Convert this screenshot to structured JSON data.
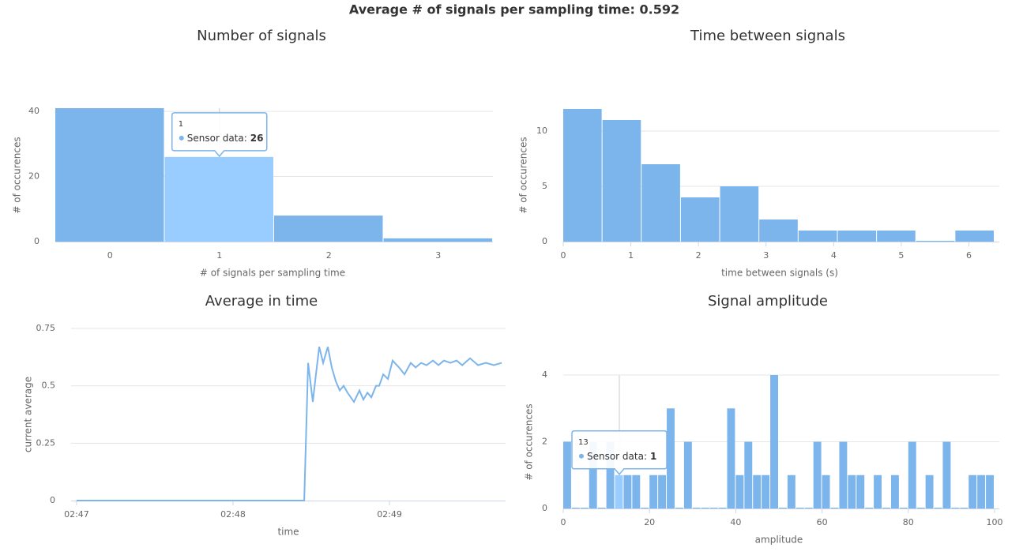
{
  "header": {
    "title": "Average # of signals per sampling time: 0.592"
  },
  "chart_data": [
    {
      "type": "bar",
      "title": "Number of signals",
      "x_label": "# of signals per sampling time",
      "y_label": "# of occurences",
      "categories": [
        "0",
        "1",
        "2",
        "3"
      ],
      "values": [
        41,
        26,
        8,
        1
      ],
      "color": "#7cb5ec",
      "highlight_color": "#99ccff",
      "ylim": [
        0,
        41
      ],
      "yticks": [
        0,
        20,
        40
      ],
      "grid": true,
      "tooltip": {
        "index": 1,
        "label": "Sensor data:"
      }
    },
    {
      "type": "histogram",
      "title": "Time between signals",
      "x_label": "time between signals (s)",
      "y_label": "# of occurences",
      "bins": [
        0,
        0.58,
        1.16,
        1.74,
        2.32,
        2.9,
        3.48,
        4.06,
        4.64,
        5.22,
        5.8,
        6.38
      ],
      "values": [
        12,
        11,
        7,
        4,
        5,
        2,
        1,
        1,
        1,
        0,
        1
      ],
      "color": "#7cb5ec",
      "xlim": [
        0,
        6.45
      ],
      "xticks": [
        0,
        1,
        2,
        3,
        4,
        5,
        6
      ],
      "ylim": [
        0,
        12
      ],
      "yticks": [
        0,
        5,
        10
      ],
      "grid": true
    },
    {
      "type": "line",
      "title": "Average in time",
      "x_label": "time",
      "y_label": "current average",
      "color": "#7cb5ec",
      "x": [
        167,
        168.455,
        168.48,
        168.51,
        168.53,
        168.551,
        168.576,
        168.606,
        168.631,
        168.657,
        168.682,
        168.707,
        168.732,
        168.773,
        168.808,
        168.833,
        168.859,
        168.884,
        168.914,
        168.934,
        168.96,
        168.99,
        169.02,
        169.061,
        169.096,
        169.136,
        169.167,
        169.202,
        169.237,
        169.278,
        169.313,
        169.348,
        169.389,
        169.429,
        169.465,
        169.515,
        169.566,
        169.616,
        169.667,
        169.717
      ],
      "values": [
        0,
        0,
        0.6,
        0.43,
        0.55,
        0.67,
        0.6,
        0.67,
        0.58,
        0.52,
        0.48,
        0.5,
        0.47,
        0.43,
        0.48,
        0.44,
        0.47,
        0.45,
        0.5,
        0.5,
        0.55,
        0.53,
        0.61,
        0.58,
        0.55,
        0.6,
        0.58,
        0.6,
        0.59,
        0.61,
        0.59,
        0.61,
        0.6,
        0.61,
        0.59,
        0.62,
        0.59,
        0.6,
        0.59,
        0.6
      ],
      "xlim": [
        166.965,
        169.742
      ],
      "xticks": [
        {
          "value": 167,
          "label": "02:47"
        },
        {
          "value": 168,
          "label": "02:48"
        },
        {
          "value": 169,
          "label": "02:49"
        }
      ],
      "ylim": [
        0,
        0.75
      ],
      "yticks": [
        0,
        0.25,
        0.5,
        0.75
      ],
      "grid": true
    },
    {
      "type": "histogram",
      "title": "Signal amplitude",
      "x_label": "amplitude",
      "y_label": "# of occurences",
      "bins": [
        0,
        2,
        4,
        6,
        8,
        10,
        12,
        14,
        16,
        18,
        20,
        22,
        24,
        26,
        28,
        30,
        32,
        34,
        36,
        38,
        40,
        42,
        44,
        46,
        48,
        50,
        52,
        54,
        56,
        58,
        60,
        62,
        64,
        66,
        68,
        70,
        72,
        74,
        76,
        78,
        80,
        82,
        84,
        86,
        88,
        90,
        92,
        94,
        96,
        98,
        100
      ],
      "values": [
        2,
        0,
        0,
        2,
        0,
        2,
        1,
        1,
        1,
        0,
        1,
        1,
        3,
        0,
        2,
        0,
        0,
        0,
        0,
        3,
        1,
        2,
        1,
        1,
        4,
        0,
        1,
        0,
        0,
        2,
        1,
        0,
        2,
        1,
        1,
        0,
        1,
        0,
        1,
        0,
        2,
        0,
        1,
        0,
        2,
        0,
        0,
        1,
        1,
        1
      ],
      "color": "#7cb5ec",
      "highlight_color": "#99ccff",
      "xlim": [
        0,
        100
      ],
      "xticks": [
        0,
        20,
        40,
        60,
        80,
        100
      ],
      "ylim": [
        0,
        4
      ],
      "yticks": [
        0,
        2,
        4
      ],
      "grid": true,
      "tooltip": {
        "index": 6,
        "x_label": 13,
        "label": "Sensor data:"
      }
    }
  ]
}
